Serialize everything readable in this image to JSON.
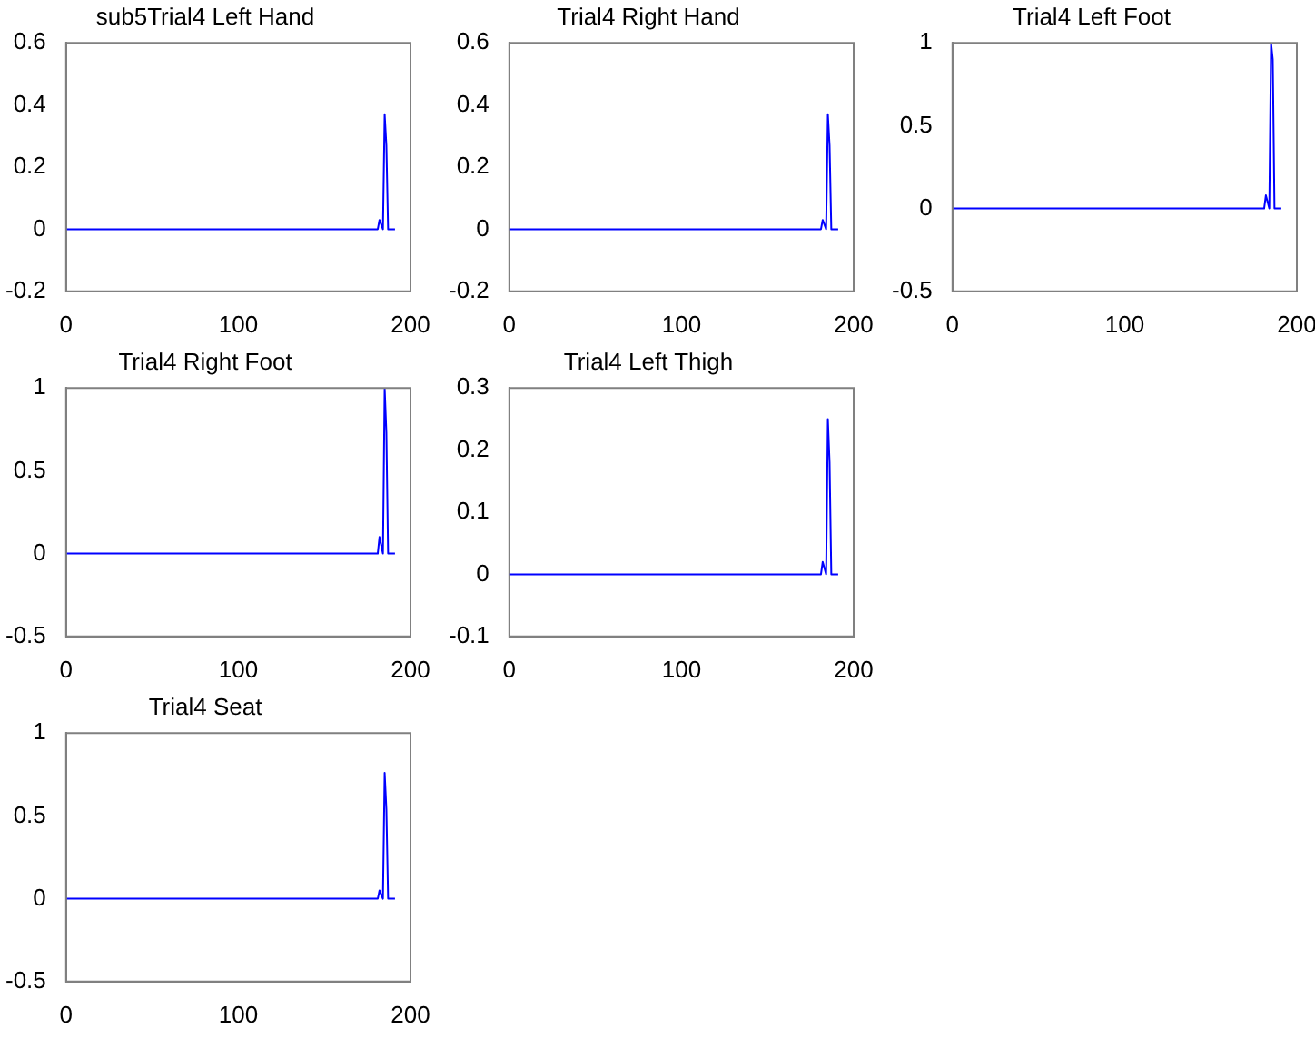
{
  "chart_data": [
    {
      "type": "line",
      "title": "sub5Trial4 Left Hand",
      "x": [
        0,
        50,
        100,
        150,
        181,
        182,
        184,
        185,
        186,
        187,
        191
      ],
      "values": [
        0,
        0,
        0,
        0,
        0,
        0.03,
        0,
        0.37,
        0.27,
        0,
        0
      ],
      "color": "#0000ff",
      "xlim": [
        0,
        200
      ],
      "xticks": [
        0,
        100,
        200
      ],
      "ylim": [
        -0.2,
        0.6
      ],
      "yticks": [
        -0.2,
        0,
        0.2,
        0.4,
        0.6
      ]
    },
    {
      "type": "line",
      "title": "Trial4 Right Hand",
      "x": [
        0,
        50,
        100,
        150,
        181,
        182,
        184,
        185,
        186,
        187,
        191
      ],
      "values": [
        0,
        0,
        0,
        0,
        0,
        0.03,
        0,
        0.37,
        0.27,
        0,
        0
      ],
      "color": "#0000ff",
      "xlim": [
        0,
        200
      ],
      "xticks": [
        0,
        100,
        200
      ],
      "ylim": [
        -0.2,
        0.6
      ],
      "yticks": [
        -0.2,
        0,
        0.2,
        0.4,
        0.6
      ]
    },
    {
      "type": "line",
      "title": "Trial4 Left Foot",
      "x": [
        0,
        50,
        100,
        150,
        181,
        182,
        184,
        185,
        186,
        187,
        191
      ],
      "values": [
        0,
        0,
        0,
        0,
        0,
        0.08,
        0,
        1,
        0.9,
        0,
        0
      ],
      "color": "#0000ff",
      "xlim": [
        0,
        200
      ],
      "xticks": [
        0,
        100,
        200
      ],
      "ylim": [
        -0.5,
        1
      ],
      "yticks": [
        -0.5,
        0,
        0.5,
        1
      ]
    },
    {
      "type": "line",
      "title": "Trial4 Right Foot",
      "x": [
        0,
        50,
        100,
        150,
        181,
        182,
        184,
        185,
        186,
        187,
        191
      ],
      "values": [
        0,
        0,
        0,
        0,
        0,
        0.1,
        0,
        1,
        0.73,
        0,
        0
      ],
      "color": "#0000ff",
      "xlim": [
        0,
        200
      ],
      "xticks": [
        0,
        100,
        200
      ],
      "ylim": [
        -0.5,
        1
      ],
      "yticks": [
        -0.5,
        0,
        0.5,
        1
      ]
    },
    {
      "type": "line",
      "title": "Trial4 Left Thigh",
      "x": [
        0,
        50,
        100,
        150,
        181,
        182,
        184,
        185,
        186,
        187,
        191
      ],
      "values": [
        0,
        0,
        0,
        0,
        0,
        0.02,
        0,
        0.25,
        0.18,
        0,
        0
      ],
      "color": "#0000ff",
      "xlim": [
        0,
        200
      ],
      "xticks": [
        0,
        100,
        200
      ],
      "ylim": [
        -0.1,
        0.3
      ],
      "yticks": [
        -0.1,
        0,
        0.1,
        0.2,
        0.3
      ]
    },
    {
      "type": "line",
      "title": "Trial4 Seat",
      "x": [
        0,
        50,
        100,
        150,
        181,
        182,
        184,
        185,
        186,
        187,
        191
      ],
      "values": [
        0,
        0,
        0,
        0,
        0,
        0.05,
        0,
        0.76,
        0.54,
        0,
        0
      ],
      "color": "#0000ff",
      "xlim": [
        0,
        200
      ],
      "xticks": [
        0,
        100,
        200
      ],
      "ylim": [
        -0.5,
        1
      ],
      "yticks": [
        -0.5,
        0,
        0.5,
        1
      ]
    }
  ]
}
